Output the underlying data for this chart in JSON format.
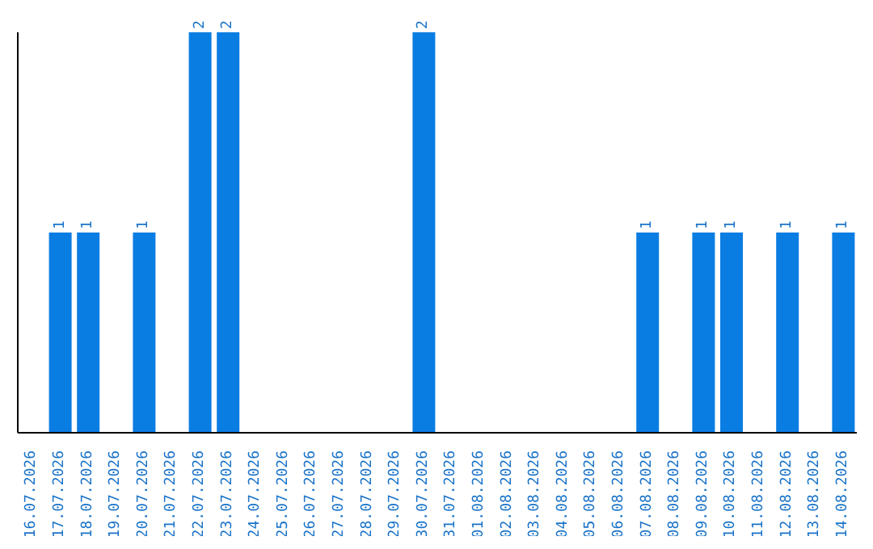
{
  "chart_data": {
    "type": "bar",
    "categories": [
      "16.07.2026",
      "17.07.2026",
      "18.07.2026",
      "19.07.2026",
      "20.07.2026",
      "21.07.2026",
      "22.07.2026",
      "23.07.2026",
      "24.07.2026",
      "25.07.2026",
      "26.07.2026",
      "27.07.2026",
      "28.07.2026",
      "29.07.2026",
      "30.07.2026",
      "31.07.2026",
      "01.08.2026",
      "02.08.2026",
      "03.08.2026",
      "04.08.2026",
      "05.08.2026",
      "06.08.2026",
      "07.08.2026",
      "08.08.2026",
      "09.08.2026",
      "10.08.2026",
      "11.08.2026",
      "12.08.2026",
      "13.08.2026",
      "14.08.2026"
    ],
    "values": [
      null,
      1,
      1,
      null,
      1,
      null,
      2,
      2,
      null,
      null,
      null,
      null,
      null,
      null,
      2,
      null,
      null,
      null,
      null,
      null,
      null,
      null,
      1,
      null,
      1,
      1,
      null,
      1,
      null,
      1
    ],
    "data_labels": true,
    "color": "#0a7de3",
    "tick_labels": "x",
    "grid": false,
    "legend": false
  }
}
